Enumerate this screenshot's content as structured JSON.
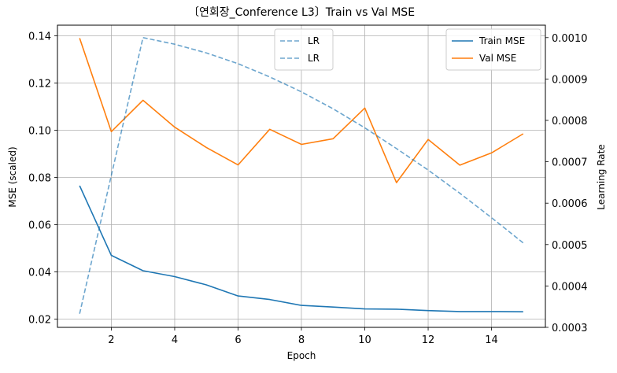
{
  "chart_data": {
    "type": "line",
    "title": "〔연회장_Conference L3〕Train vs Val MSE",
    "xlabel": "Epoch",
    "ylabel": "MSE (scaled)",
    "y2label": "Learning Rate",
    "grid": true,
    "xlim": [
      0.3,
      15.7
    ],
    "ylim": [
      0.0165,
      0.1445
    ],
    "y2lim": [
      0.0003,
      0.00103
    ],
    "xticks": [
      2,
      4,
      6,
      8,
      10,
      12,
      14
    ],
    "xtick_labels": [
      "2",
      "4",
      "6",
      "8",
      "10",
      "12",
      "14"
    ],
    "yticks": [
      0.02,
      0.04,
      0.06,
      0.08,
      0.1,
      0.12,
      0.14
    ],
    "ytick_labels": [
      "0.02",
      "0.04",
      "0.06",
      "0.08",
      "0.10",
      "0.12",
      "0.14"
    ],
    "y2ticks": [
      0.0003,
      0.0004,
      0.0005,
      0.0006,
      0.0007,
      0.0008,
      0.0009,
      0.001
    ],
    "y2tick_labels": [
      "0.0003",
      "0.0004",
      "0.0005",
      "0.0006",
      "0.0007",
      "0.0008",
      "0.0009",
      "0.0010"
    ],
    "x": [
      1,
      2,
      3,
      4,
      5,
      6,
      7,
      8,
      9,
      10,
      11,
      12,
      13,
      14,
      15
    ],
    "series": [
      {
        "name": "Train MSE",
        "axis": "left",
        "color": "#1f77b4",
        "dashed": false,
        "values": [
          0.0765,
          0.047,
          0.0405,
          0.038,
          0.0345,
          0.0298,
          0.0283,
          0.0258,
          0.0251,
          0.0243,
          0.0242,
          0.0236,
          0.0232,
          0.0232,
          0.0231
        ]
      },
      {
        "name": "Val MSE",
        "axis": "left",
        "color": "#ff7f0e",
        "dashed": false,
        "values": [
          0.139,
          0.0994,
          0.1127,
          0.1013,
          0.0927,
          0.0853,
          0.1004,
          0.094,
          0.0964,
          0.1094,
          0.0778,
          0.0961,
          0.0852,
          0.0904,
          0.0985
        ]
      },
      {
        "name": "LR",
        "axis": "right",
        "color": "#1f77b4",
        "dashed": true,
        "values": [
          0.000333,
          0.000667,
          0.001,
          0.000984,
          0.000963,
          0.000937,
          0.000905,
          0.000869,
          0.000828,
          0.000782,
          0.000732,
          0.00068,
          0.000624,
          0.000565,
          0.000504
        ]
      }
    ],
    "legend_left": {
      "position": "top-center",
      "entries": [
        {
          "label": "LR",
          "color": "#1f77b4",
          "dashed": true
        },
        {
          "label": "LR",
          "color": "#1f77b4",
          "dashed": true
        }
      ]
    },
    "legend_right": {
      "position": "top-right",
      "entries": [
        {
          "label": "Train MSE",
          "color": "#1f77b4",
          "dashed": false
        },
        {
          "label": "Val MSE",
          "color": "#ff7f0e",
          "dashed": false
        }
      ]
    }
  }
}
